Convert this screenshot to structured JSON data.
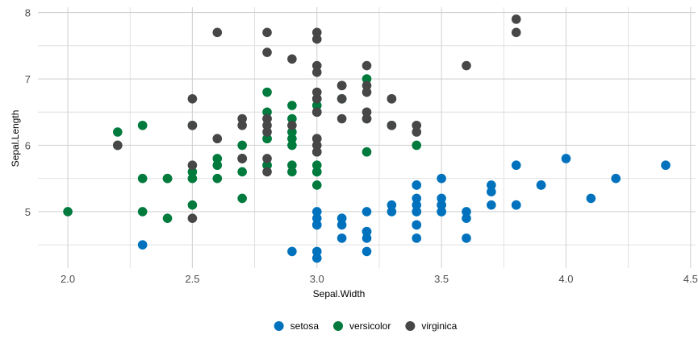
{
  "chart_data": {
    "type": "scatter",
    "xlabel": "Sepal.Width",
    "ylabel": "Sepal.Length",
    "xlim": [
      1.88,
      4.52
    ],
    "ylim": [
      4.15,
      8.08
    ],
    "x_ticks": [
      2.0,
      2.5,
      3.0,
      3.5,
      4.0,
      4.5
    ],
    "x_tick_labels": [
      "2.0",
      "2.5",
      "3.0",
      "3.5",
      "4.0",
      "4.5"
    ],
    "y_ticks": [
      5,
      6,
      7,
      8
    ],
    "y_tick_labels": [
      "5",
      "6",
      "7",
      "8"
    ],
    "grid": true,
    "legend": "bottom",
    "series": [
      {
        "name": "setosa",
        "color": "#0072BD",
        "x": [
          3.5,
          3.0,
          3.2,
          3.1,
          3.6,
          3.9,
          3.4,
          3.4,
          2.9,
          3.1,
          3.7,
          3.4,
          3.0,
          3.0,
          4.0,
          4.4,
          3.9,
          3.5,
          3.8,
          3.8,
          3.4,
          3.7,
          3.6,
          3.3,
          3.4,
          3.0,
          3.4,
          3.5,
          3.4,
          3.2,
          3.1,
          3.4,
          4.1,
          4.2,
          3.1,
          3.2,
          3.5,
          3.6,
          3.0,
          3.4,
          3.5,
          2.3,
          3.2,
          3.5,
          3.8,
          3.0,
          3.8,
          3.2,
          3.7,
          3.3
        ],
        "y": [
          5.1,
          4.9,
          4.7,
          4.6,
          5.0,
          5.4,
          4.6,
          5.0,
          4.4,
          4.9,
          5.4,
          4.8,
          4.8,
          4.3,
          5.8,
          5.7,
          5.4,
          5.1,
          5.7,
          5.1,
          5.4,
          5.1,
          4.6,
          5.1,
          4.8,
          5.0,
          5.0,
          5.2,
          5.2,
          4.7,
          4.8,
          5.4,
          5.2,
          5.5,
          4.9,
          5.0,
          5.5,
          4.9,
          4.4,
          5.1,
          5.0,
          4.5,
          4.4,
          5.0,
          5.1,
          4.8,
          5.1,
          4.6,
          5.3,
          5.0
        ]
      },
      {
        "name": "versicolor",
        "color": "#007A3D",
        "x": [
          3.2,
          3.2,
          3.1,
          2.3,
          2.8,
          2.8,
          3.3,
          2.4,
          2.9,
          2.7,
          2.0,
          3.0,
          2.2,
          2.9,
          2.9,
          3.1,
          3.0,
          2.7,
          2.2,
          2.5,
          3.2,
          2.8,
          2.5,
          2.8,
          2.9,
          3.0,
          2.8,
          3.0,
          2.9,
          2.6,
          2.4,
          2.4,
          2.7,
          2.7,
          3.0,
          3.4,
          3.1,
          2.3,
          3.0,
          2.5,
          2.6,
          3.0,
          2.6,
          2.3,
          2.7,
          3.0,
          2.9,
          2.9,
          2.5,
          2.8
        ],
        "y": [
          7.0,
          6.4,
          6.9,
          5.5,
          6.5,
          5.7,
          6.3,
          4.9,
          6.6,
          5.2,
          5.0,
          5.9,
          6.0,
          6.1,
          5.6,
          6.7,
          5.6,
          5.8,
          6.2,
          5.6,
          5.9,
          6.1,
          6.3,
          6.1,
          6.4,
          6.6,
          6.8,
          6.7,
          6.0,
          5.7,
          5.5,
          5.5,
          5.8,
          6.0,
          5.4,
          6.0,
          6.7,
          6.3,
          5.6,
          5.5,
          5.5,
          6.1,
          5.8,
          5.0,
          5.6,
          5.7,
          5.7,
          6.2,
          5.1,
          5.7
        ]
      },
      {
        "name": "virginica",
        "color": "#474747",
        "x": [
          3.3,
          2.7,
          3.0,
          2.9,
          3.0,
          3.0,
          2.5,
          2.9,
          2.5,
          3.6,
          3.2,
          2.7,
          3.0,
          2.5,
          2.8,
          3.2,
          3.0,
          3.8,
          2.6,
          2.2,
          3.2,
          2.8,
          2.8,
          2.7,
          3.3,
          3.2,
          2.8,
          3.0,
          2.8,
          3.0,
          2.8,
          3.8,
          2.8,
          2.8,
          2.6,
          3.0,
          3.4,
          3.1,
          3.0,
          3.1,
          3.1,
          3.1,
          2.7,
          3.2,
          3.3,
          3.0,
          2.5,
          3.0,
          3.4,
          3.0
        ],
        "y": [
          6.3,
          5.8,
          7.1,
          6.3,
          6.5,
          7.6,
          4.9,
          7.3,
          6.7,
          7.2,
          6.5,
          6.4,
          6.8,
          5.7,
          5.8,
          6.4,
          6.5,
          7.7,
          7.7,
          6.0,
          6.9,
          5.6,
          7.7,
          6.3,
          6.7,
          7.2,
          6.2,
          6.1,
          6.4,
          7.2,
          7.4,
          7.9,
          6.4,
          6.3,
          6.1,
          7.7,
          6.3,
          6.4,
          6.0,
          6.9,
          6.7,
          6.9,
          5.8,
          6.8,
          6.7,
          6.7,
          6.3,
          6.5,
          6.2,
          5.9
        ]
      }
    ]
  }
}
